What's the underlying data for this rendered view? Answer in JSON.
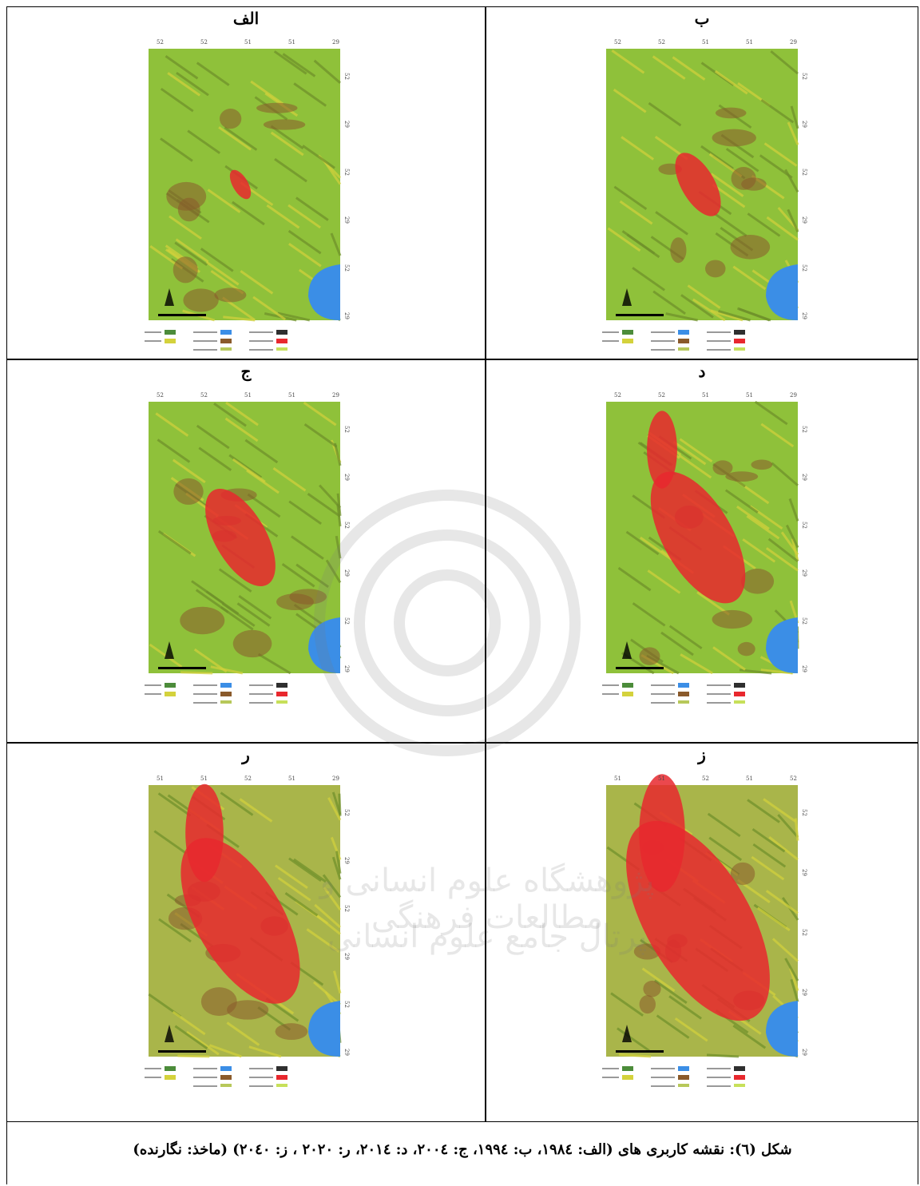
{
  "figure": {
    "panels": [
      {
        "label": "الف",
        "top_ticks": [
          "52",
          "52",
          "51",
          "51",
          "29"
        ],
        "side_ticks": [
          "52",
          "29",
          "52",
          "29",
          "52",
          "29"
        ]
      },
      {
        "label": "ب",
        "top_ticks": [
          "52",
          "52",
          "51",
          "51",
          "29"
        ],
        "side_ticks": [
          "52",
          "29",
          "52",
          "29",
          "52",
          "29"
        ]
      },
      {
        "label": "ج",
        "top_ticks": [
          "52",
          "52",
          "51",
          "51",
          "29"
        ],
        "side_ticks": [
          "52",
          "29",
          "52",
          "29",
          "52",
          "29"
        ]
      },
      {
        "label": "د",
        "top_ticks": [
          "52",
          "52",
          "51",
          "51",
          "29"
        ],
        "side_ticks": [
          "52",
          "29",
          "52",
          "29",
          "52",
          "29"
        ]
      },
      {
        "label": "ر",
        "top_ticks": [
          "51",
          "51",
          "52",
          "51",
          "29"
        ],
        "side_ticks": [
          "52",
          "29",
          "52",
          "29",
          "52",
          "29"
        ]
      },
      {
        "label": "ز",
        "top_ticks": [
          "51",
          "51",
          "52",
          "51",
          "52"
        ],
        "side_ticks": [
          "52",
          "29",
          "52",
          "29",
          "29"
        ]
      }
    ],
    "watermark": [
      "پژوهشگاه علوم انسانی و مطالعات فرهنگی",
      "پرتال جامع علوم انسانی"
    ],
    "caption": "شکل (٦): نقشه کاربری های (الف: ۱۹۸٤، ب: ۱۹۹٤، ج: ۲۰۰٤، د: ۲۰۱٤، ر: ۲۰۲۰ ، ز: ۲۰٤۰) (ماخذ: نگارنده)"
  }
}
